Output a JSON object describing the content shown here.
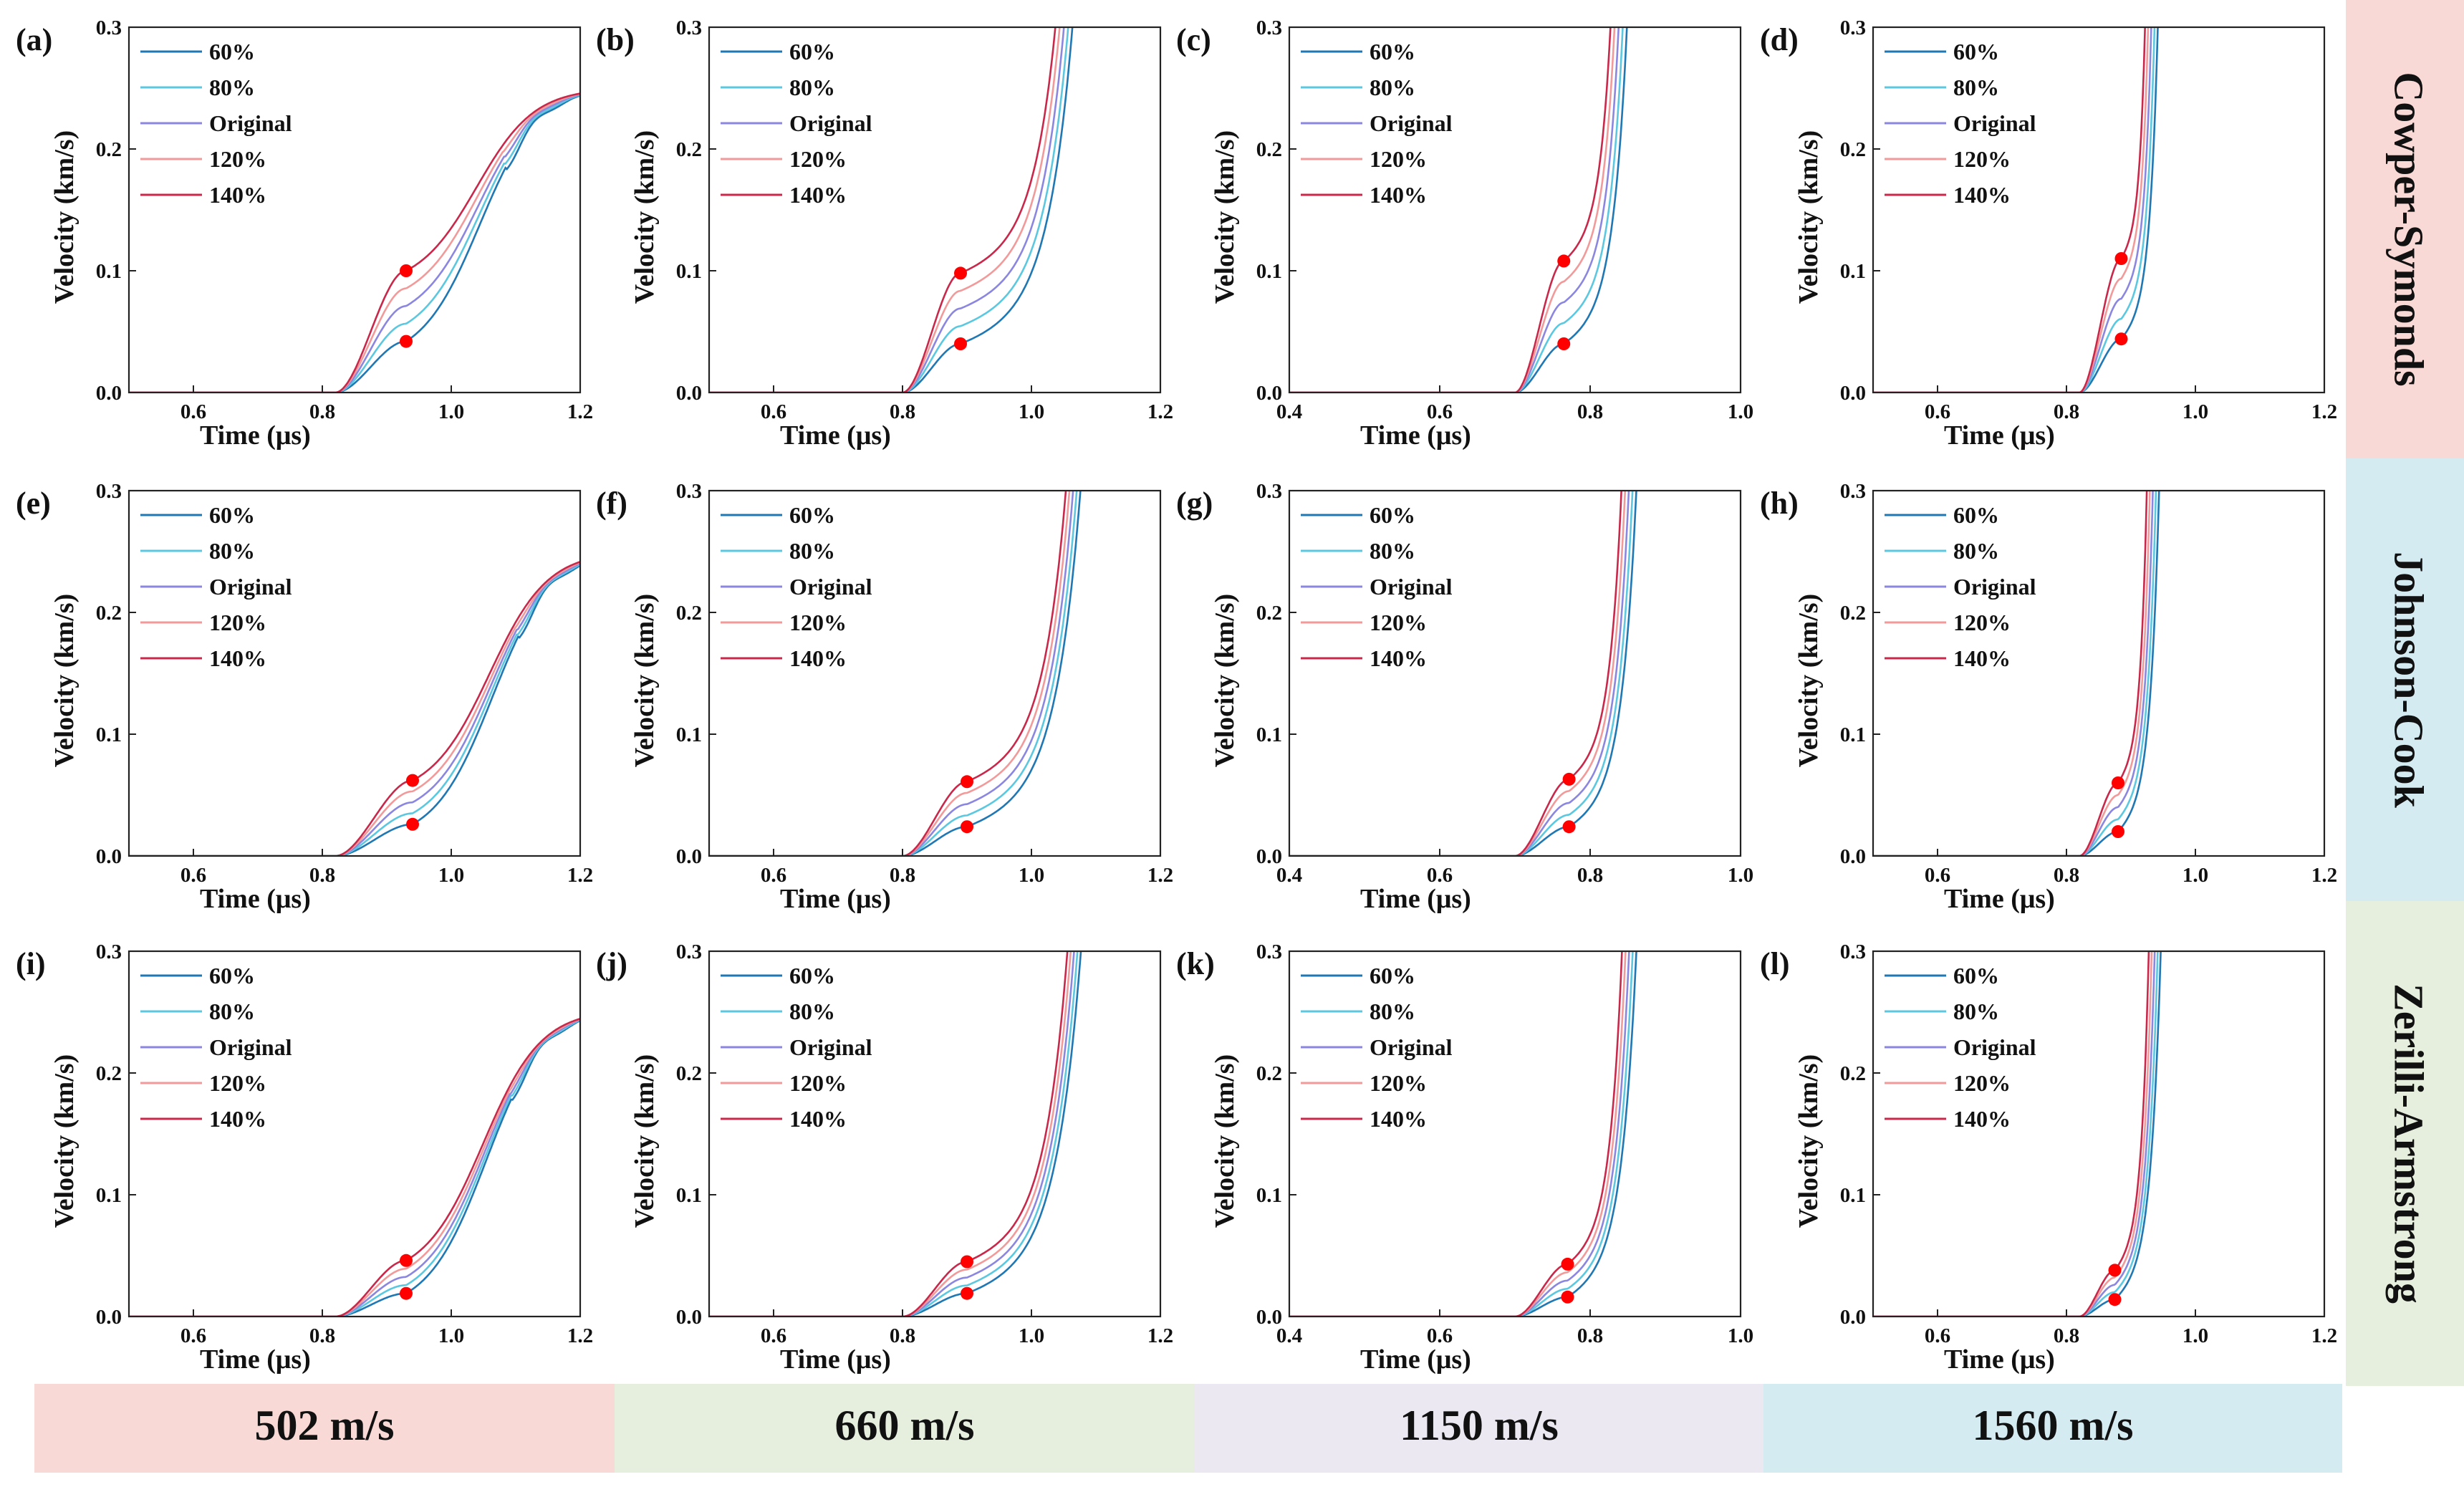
{
  "chart_data": {
    "type": "line",
    "axis_labels": {
      "x": "Time (μs)",
      "y": "Velocity (km/s)"
    },
    "legend": [
      "60%",
      "80%",
      "Original",
      "120%",
      "140%"
    ],
    "colors": {
      "60%": "#1f77b4",
      "80%": "#5bc8e0",
      "Original": "#8b86e0",
      "120%": "#f29a9a",
      "140%": "#c8284a",
      "marker": "#ff0000"
    },
    "row_labels": [
      {
        "text": "Cowper-Symonds",
        "color": "#f9d9d6"
      },
      {
        "text": "Johnson-Cook",
        "color": "#d4ebf1"
      },
      {
        "text": "Zerilli-Armstrong",
        "color": "#e6efdd"
      }
    ],
    "column_labels": [
      {
        "text": "502 m/s",
        "color": "#f9d9d6"
      },
      {
        "text": "660 m/s",
        "color": "#e6efdd"
      },
      {
        "text": "1150 m/s",
        "color": "#ece8f1"
      },
      {
        "text": "1560 m/s",
        "color": "#d4ebf1"
      }
    ],
    "column_axes": [
      {
        "xlim": [
          0.5,
          1.2
        ],
        "xticks": [
          "0.6",
          "0.8",
          "1.0",
          "1.2"
        ]
      },
      {
        "xlim": [
          0.5,
          1.2
        ],
        "xticks": [
          "0.6",
          "0.8",
          "1.0",
          "1.2"
        ]
      },
      {
        "xlim": [
          0.4,
          1.0
        ],
        "xticks": [
          "0.4",
          "0.6",
          "0.8",
          "1.0"
        ]
      },
      {
        "xlim": [
          0.5,
          1.2
        ],
        "xticks": [
          "0.6",
          "0.8",
          "1.0",
          "1.2"
        ]
      }
    ],
    "ylim": [
      0.0,
      0.3
    ],
    "yticks": [
      "0.0",
      "0.1",
      "0.2",
      "0.3"
    ],
    "panels": [
      {
        "label": "(a)",
        "model": "Cowper-Symonds",
        "velocity": "502 m/s",
        "kind": "plateau",
        "t0": 0.82,
        "tk": 0.93,
        "tr": 1.04,
        "p_lo": 0.042,
        "p_hi": 0.1,
        "final": 0.25,
        "marker_t": 0.93,
        "marker_v": [
          0.042,
          0.1
        ]
      },
      {
        "label": "(b)",
        "model": "Cowper-Symonds",
        "velocity": "660 m/s",
        "kind": "rise",
        "t0": 0.8,
        "tk": 0.89,
        "tr": 1.0,
        "p_lo": 0.04,
        "p_hi": 0.098,
        "marker_t": 0.89,
        "marker_v": [
          0.04,
          0.098
        ]
      },
      {
        "label": "(c)",
        "model": "Cowper-Symonds",
        "velocity": "1150 m/s",
        "kind": "rise",
        "t0": 0.7,
        "tk": 0.765,
        "tr": 0.812,
        "p_lo": 0.04,
        "p_hi": 0.108,
        "marker_t": 0.765,
        "marker_v": [
          0.04,
          0.108
        ]
      },
      {
        "label": "(d)",
        "model": "Cowper-Symonds",
        "velocity": "1560 m/s",
        "kind": "rise",
        "t0": 0.82,
        "tk": 0.885,
        "tr": 0.913,
        "p_lo": 0.044,
        "p_hi": 0.11,
        "marker_t": 0.885,
        "marker_v": [
          0.044,
          0.11
        ]
      },
      {
        "label": "(e)",
        "model": "Johnson-Cook",
        "velocity": "502 m/s",
        "kind": "plateau",
        "t0": 0.82,
        "tk": 0.94,
        "tr": 1.06,
        "p_lo": 0.026,
        "p_hi": 0.062,
        "final": 0.25,
        "marker_t": 0.94,
        "marker_v": [
          0.026,
          0.062
        ]
      },
      {
        "label": "(f)",
        "model": "Johnson-Cook",
        "velocity": "660 m/s",
        "kind": "rise",
        "t0": 0.8,
        "tk": 0.9,
        "tr": 1.01,
        "p_lo": 0.024,
        "p_hi": 0.061,
        "marker_t": 0.9,
        "marker_v": [
          0.024,
          0.061
        ]
      },
      {
        "label": "(g)",
        "model": "Johnson-Cook",
        "velocity": "1150 m/s",
        "kind": "rise",
        "t0": 0.7,
        "tk": 0.772,
        "tr": 0.822,
        "p_lo": 0.024,
        "p_hi": 0.063,
        "marker_t": 0.772,
        "marker_v": [
          0.024,
          0.063
        ]
      },
      {
        "label": "(h)",
        "model": "Johnson-Cook",
        "velocity": "1560 m/s",
        "kind": "rise",
        "t0": 0.82,
        "tk": 0.88,
        "tr": 0.912,
        "p_lo": 0.02,
        "p_hi": 0.06,
        "marker_t": 0.88,
        "marker_v": [
          0.02,
          0.06
        ]
      },
      {
        "label": "(i)",
        "model": "Zerilli-Armstrong",
        "velocity": "502 m/s",
        "kind": "plateau",
        "t0": 0.82,
        "tk": 0.93,
        "tr": 1.05,
        "p_lo": 0.019,
        "p_hi": 0.046,
        "final": 0.252,
        "marker_t": 0.93,
        "marker_v": [
          0.019,
          0.046
        ]
      },
      {
        "label": "(j)",
        "model": "Zerilli-Armstrong",
        "velocity": "660 m/s",
        "kind": "rise",
        "t0": 0.8,
        "tk": 0.9,
        "tr": 1.01,
        "p_lo": 0.019,
        "p_hi": 0.045,
        "marker_t": 0.9,
        "marker_v": [
          0.019,
          0.045
        ]
      },
      {
        "label": "(k)",
        "model": "Zerilli-Armstrong",
        "velocity": "1150 m/s",
        "kind": "rise",
        "t0": 0.7,
        "tk": 0.77,
        "tr": 0.821,
        "p_lo": 0.016,
        "p_hi": 0.043,
        "marker_t": 0.77,
        "marker_v": [
          0.016,
          0.043
        ]
      },
      {
        "label": "(l)",
        "model": "Zerilli-Armstrong",
        "velocity": "1560 m/s",
        "kind": "rise",
        "t0": 0.82,
        "tk": 0.875,
        "tr": 0.912,
        "p_lo": 0.014,
        "p_hi": 0.038,
        "marker_t": 0.875,
        "marker_v": [
          0.014,
          0.038
        ]
      }
    ]
  }
}
